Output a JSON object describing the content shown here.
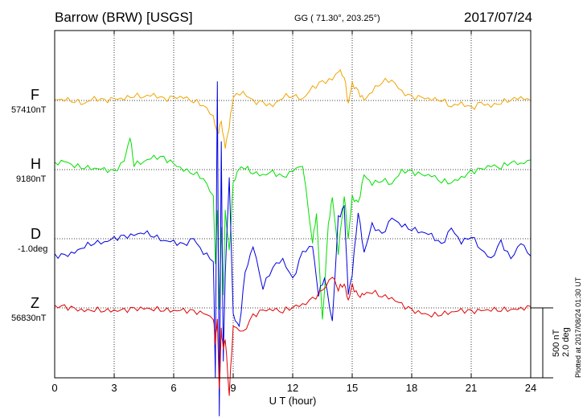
{
  "header": {
    "station": "Barrow (BRW)  [USGS]",
    "coords": "GG ( 71.30°, 203.25°)",
    "date": "2017/07/24"
  },
  "plotted_note": "Plotted at 2017/08/24 01:30 UT",
  "scale_bar": {
    "nt": "500 nT",
    "deg": "2.0 deg"
  },
  "colors": {
    "F": "#f0a500",
    "H": "#00e000",
    "D": "#0000e0",
    "Z": "#e00000",
    "grid": "#000000"
  },
  "chart_data": {
    "type": "line",
    "title": "Barrow (BRW)  [USGS]",
    "xlabel": "U T (hour)",
    "ylabel": "",
    "xlim": [
      0,
      24
    ],
    "xticks": [
      "0",
      "3",
      "6",
      "9",
      "12",
      "15",
      "18",
      "21",
      "24"
    ],
    "y_scale": "500 nT / 2.0 deg per scale bar",
    "grid": true,
    "series": [
      {
        "name": "F",
        "baseline_label": "57410nT",
        "unit": "nT",
        "baseline": 57410,
        "x": [
          0,
          0.5,
          1,
          1.5,
          2,
          2.5,
          3,
          3.5,
          4,
          4.5,
          5,
          5.5,
          6,
          6.5,
          7,
          7.5,
          8,
          8.2,
          8.4,
          8.6,
          8.8,
          9,
          9.5,
          10,
          10.5,
          11,
          11.5,
          12,
          12.5,
          13,
          13.5,
          14,
          14.3,
          14.6,
          14.8,
          15,
          15.3,
          15.6,
          16,
          16.5,
          17,
          17.5,
          18,
          18.5,
          19,
          19.5,
          20,
          20.5,
          21,
          21.5,
          22,
          22.5,
          23,
          23.5,
          24
        ],
        "values": [
          5,
          10,
          0,
          -20,
          15,
          -5,
          10,
          15,
          40,
          30,
          40,
          5,
          20,
          25,
          0,
          -30,
          -120,
          -250,
          -160,
          -340,
          -180,
          30,
          60,
          -10,
          -20,
          -40,
          30,
          40,
          10,
          90,
          130,
          150,
          220,
          180,
          -20,
          120,
          60,
          0,
          70,
          140,
          150,
          60,
          20,
          20,
          10,
          10,
          -40,
          -20,
          -60,
          -20,
          -40,
          -10,
          10,
          20,
          0
        ]
      },
      {
        "name": "H",
        "baseline_label": "9180nT",
        "unit": "nT",
        "baseline": 9180,
        "x": [
          0,
          0.5,
          1,
          1.5,
          2,
          2.5,
          3,
          3.5,
          3.8,
          4,
          4.5,
          5,
          5.5,
          6,
          6.5,
          7,
          7.5,
          8,
          8.1,
          8.2,
          8.3,
          8.4,
          8.5,
          8.6,
          8.8,
          9,
          9.3,
          9.6,
          10,
          10.5,
          11,
          11.5,
          12,
          12.5,
          13,
          13.2,
          13.5,
          13.8,
          14,
          14.3,
          14.6,
          14.8,
          15,
          15.3,
          15.6,
          16,
          16.5,
          17,
          17.5,
          18,
          18.5,
          19,
          19.5,
          20,
          20.5,
          21,
          21.5,
          22,
          22.5,
          23,
          23.5,
          24
        ],
        "values": [
          40,
          60,
          30,
          20,
          10,
          0,
          -20,
          60,
          240,
          40,
          60,
          90,
          80,
          40,
          0,
          -20,
          -60,
          -200,
          -700,
          -300,
          -1000,
          -400,
          -900,
          -300,
          -600,
          -100,
          10,
          20,
          -20,
          -40,
          -20,
          -60,
          -10,
          40,
          -520,
          -320,
          -1100,
          -400,
          -200,
          -600,
          -180,
          -500,
          -200,
          -250,
          -40,
          -100,
          -70,
          -100,
          -10,
          -20,
          -40,
          -40,
          -80,
          -90,
          -60,
          -20,
          0,
          30,
          20,
          60,
          40,
          70
        ]
      },
      {
        "name": "D",
        "baseline_label": "-1.0deg",
        "unit": "deg",
        "baseline": -1.0,
        "x": [
          0,
          0.5,
          1,
          1.5,
          2,
          2.5,
          3,
          3.5,
          4,
          4.5,
          5,
          5.5,
          6,
          6.5,
          7,
          7.5,
          8,
          8.1,
          8.2,
          8.3,
          8.4,
          8.5,
          8.6,
          8.8,
          9,
          9.3,
          9.6,
          10,
          10.5,
          11,
          11.5,
          12,
          12.5,
          13,
          13.3,
          13.6,
          14,
          14.3,
          14.6,
          14.8,
          15,
          15.3,
          15.6,
          16,
          16.5,
          17,
          17.5,
          18,
          18.5,
          19,
          19.5,
          20,
          20.5,
          21,
          21.5,
          22,
          22.5,
          23,
          23.5,
          24
        ],
        "values": [
          -0.5,
          -0.5,
          -0.4,
          -0.2,
          -0.1,
          -0.1,
          0,
          0.05,
          0.1,
          0.2,
          0.1,
          -0.05,
          -0.1,
          -0.2,
          0,
          -0.4,
          -0.6,
          -4,
          4.5,
          -5.2,
          2.8,
          -3.5,
          -1,
          1.8,
          -2.2,
          -2.6,
          -1,
          -0.2,
          -1.4,
          -0.8,
          -0.6,
          -1.2,
          -0.4,
          -0.2,
          -1.6,
          -1.1,
          -2.4,
          0.6,
          0.9,
          -1.6,
          -1,
          0.8,
          -0.4,
          0.4,
          0.1,
          0.6,
          0.4,
          0.3,
          0.2,
          0.1,
          -0.2,
          0.3,
          -0.1,
          0.1,
          -0.3,
          -0.6,
          -0.1,
          -0.6,
          -0.1,
          -0.5
        ]
      },
      {
        "name": "Z",
        "baseline_label": "56830nT",
        "unit": "nT",
        "baseline": 56830,
        "x": [
          0,
          0.5,
          1,
          1.5,
          2,
          2.5,
          3,
          3.5,
          4,
          4.5,
          5,
          5.5,
          6,
          6.5,
          7,
          7.5,
          8,
          8.1,
          8.2,
          8.3,
          8.4,
          8.5,
          8.6,
          8.8,
          9,
          9.5,
          10,
          10.5,
          11,
          11.5,
          12,
          12.5,
          13,
          13.5,
          14,
          14.3,
          14.6,
          14.8,
          15,
          15.3,
          15.6,
          16,
          16.5,
          17,
          17.5,
          18,
          18.5,
          19,
          19.5,
          20,
          20.5,
          21,
          21.5,
          22,
          22.5,
          23,
          23.5,
          24
        ],
        "values": [
          10,
          5,
          -10,
          -20,
          -10,
          -15,
          -20,
          -20,
          -10,
          -5,
          -5,
          -10,
          -20,
          -20,
          -30,
          -40,
          -70,
          -250,
          -80,
          -600,
          -160,
          -300,
          -220,
          -620,
          -130,
          -180,
          -60,
          -20,
          -10,
          -20,
          10,
          20,
          60,
          120,
          230,
          140,
          180,
          50,
          160,
          80,
          100,
          120,
          90,
          70,
          20,
          -20,
          -40,
          -50,
          -40,
          -30,
          -20,
          -30,
          -20,
          -10,
          -10,
          -10,
          -10,
          10
        ]
      }
    ]
  }
}
